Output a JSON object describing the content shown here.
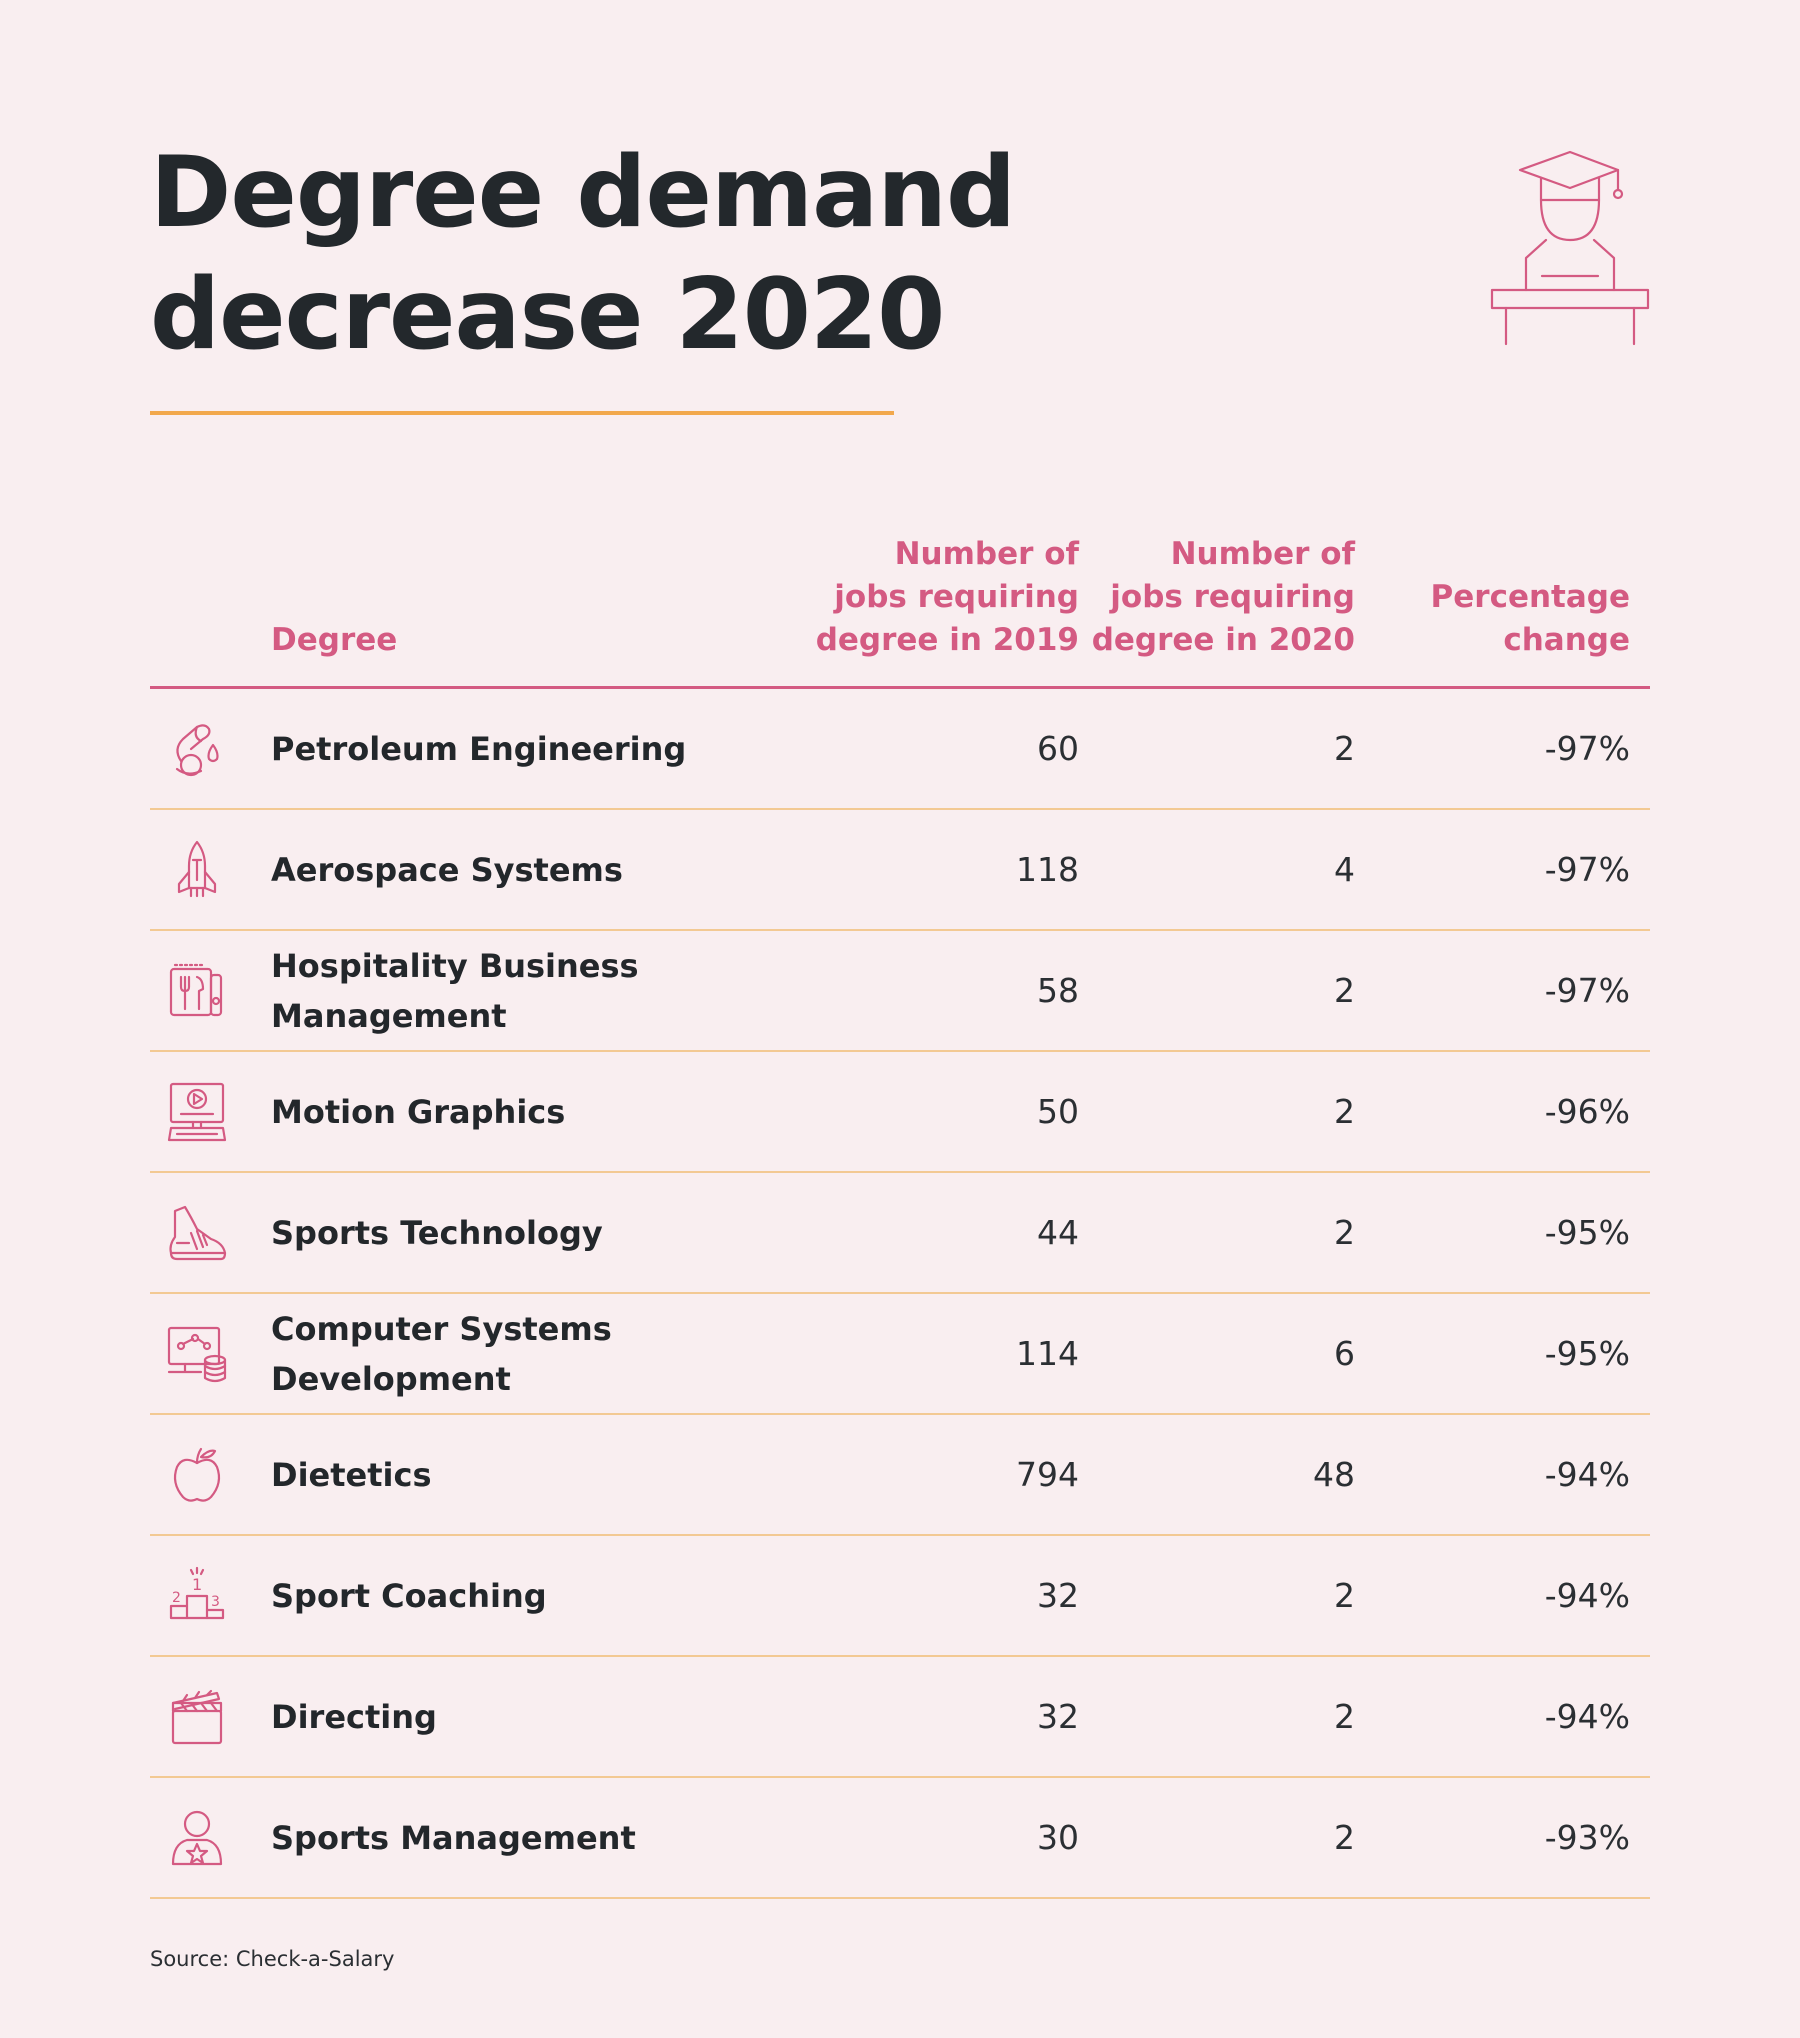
{
  "header": {
    "title_line1": "Degree demand",
    "title_line2": "decrease 2020",
    "icon": "graduate-at-podium-icon"
  },
  "colors": {
    "background": "#f9eef0",
    "accent": "#d45a82",
    "rule": "#f2a84c",
    "row_divider": "#f3c993",
    "text": "#23272b"
  },
  "chart_data": {
    "type": "table",
    "title": "Degree demand decrease 2020",
    "columns": [
      "Degree",
      "Number of jobs requiring degree in 2019",
      "Number of jobs requiring degree in 2020",
      "Percentage change"
    ],
    "column_lines": {
      "degree": [
        "Degree"
      ],
      "jobs_2019": [
        "Number of",
        "jobs requiring",
        "degree in 2019"
      ],
      "jobs_2020": [
        "Number of",
        "jobs requiring",
        "degree in 2020"
      ],
      "pct": [
        "Percentage",
        "change"
      ]
    },
    "rows": [
      {
        "icon": "oil-drop-icon",
        "degree": [
          "Petroleum Engineering"
        ],
        "jobs_2019": "60",
        "jobs_2020": "2",
        "pct": "-97%"
      },
      {
        "icon": "rocket-icon",
        "degree": [
          "Aerospace Systems"
        ],
        "jobs_2019": "118",
        "jobs_2020": "4",
        "pct": "-97%"
      },
      {
        "icon": "menu-cutlery-icon",
        "degree": [
          "Hospitality Business",
          "Management"
        ],
        "jobs_2019": "58",
        "jobs_2020": "2",
        "pct": "-97%"
      },
      {
        "icon": "monitor-play-icon",
        "degree": [
          "Motion Graphics"
        ],
        "jobs_2019": "50",
        "jobs_2020": "2",
        "pct": "-96%"
      },
      {
        "icon": "sneaker-icon",
        "degree": [
          "Sports Technology"
        ],
        "jobs_2019": "44",
        "jobs_2020": "2",
        "pct": "-95%"
      },
      {
        "icon": "computer-database-icon",
        "degree": [
          "Computer Systems",
          "Development"
        ],
        "jobs_2019": "114",
        "jobs_2020": "6",
        "pct": "-95%"
      },
      {
        "icon": "apple-icon",
        "degree": [
          "Dietetics"
        ],
        "jobs_2019": "794",
        "jobs_2020": "48",
        "pct": "-94%"
      },
      {
        "icon": "podium-icon",
        "degree": [
          "Sport Coaching"
        ],
        "jobs_2019": "32",
        "jobs_2020": "2",
        "pct": "-94%"
      },
      {
        "icon": "clapperboard-icon",
        "degree": [
          "Directing"
        ],
        "jobs_2019": "32",
        "jobs_2020": "2",
        "pct": "-94%"
      },
      {
        "icon": "user-star-icon",
        "degree": [
          "Sports Management"
        ],
        "jobs_2019": "30",
        "jobs_2020": "2",
        "pct": "-93%"
      }
    ],
    "podium_digits": [
      "1",
      "2",
      "3"
    ]
  },
  "footer": {
    "source": "Source: Check-a-Salary"
  }
}
